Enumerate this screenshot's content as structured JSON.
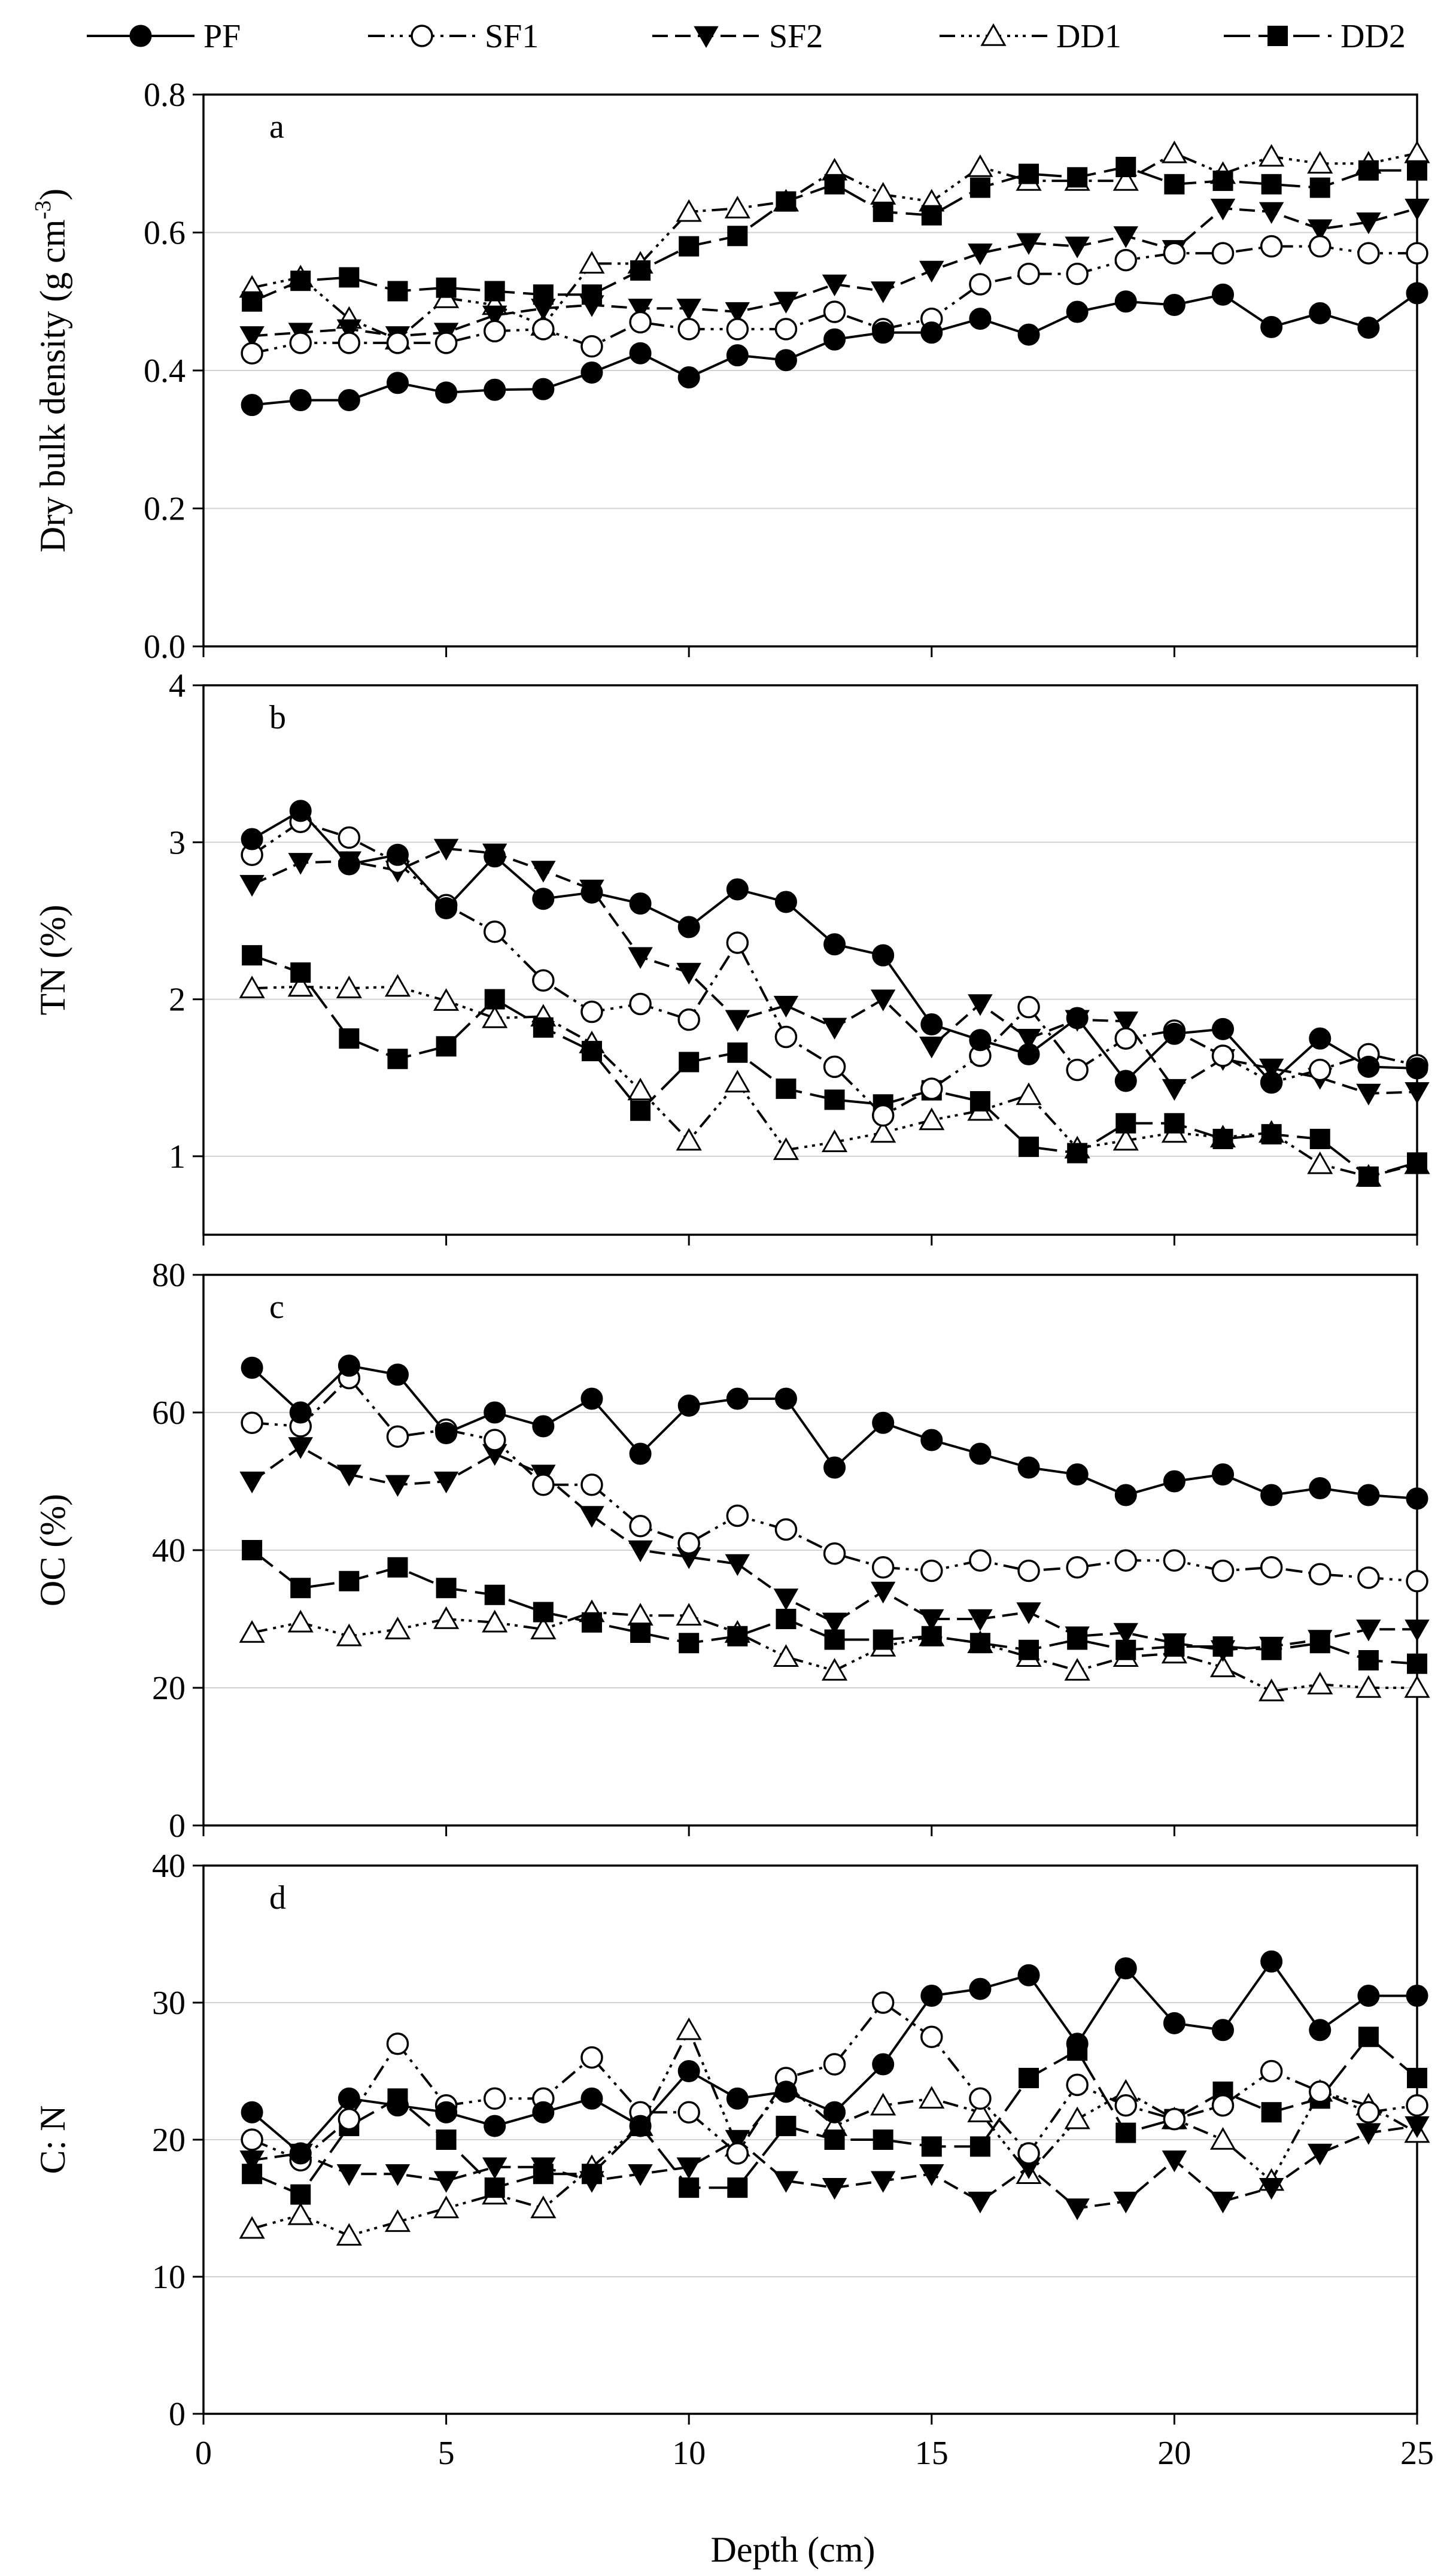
{
  "chart_data": {
    "type": "line",
    "xlabel": "Depth (cm)",
    "x": [
      1,
      2,
      3,
      4,
      5,
      6,
      7,
      8,
      9,
      10,
      11,
      12,
      13,
      14,
      15,
      16,
      17,
      18,
      19,
      20,
      21,
      22,
      23,
      24,
      25
    ],
    "xlim": [
      0,
      25
    ],
    "xticks": [
      0,
      5,
      10,
      15,
      20,
      25
    ],
    "legend": {
      "position": "top",
      "entries": [
        {
          "name": "PF",
          "marker": "filled-circle",
          "dash": "solid"
        },
        {
          "name": "SF1",
          "marker": "open-circle",
          "dash": "dash-dot-dot"
        },
        {
          "name": "SF2",
          "marker": "filled-down-triangle",
          "dash": "dashed"
        },
        {
          "name": "DD1",
          "marker": "open-up-triangle",
          "dash": "dash-dot-dot-dot"
        },
        {
          "name": "DD2",
          "marker": "filled-square",
          "dash": "long-dash"
        }
      ]
    },
    "panels": [
      {
        "letter": "a",
        "ylabel": "Dry bulk density (g cm",
        "ylabel_sup": "-3",
        "ylabel_close": ")",
        "ylim": [
          0,
          0.8
        ],
        "yticks": [
          "0.0",
          "0.2",
          "0.4",
          "0.6",
          "0.8"
        ],
        "series": [
          {
            "name": "PF",
            "values": [
              0.35,
              0.357,
              0.357,
              0.382,
              0.368,
              0.372,
              0.373,
              0.397,
              0.425,
              0.39,
              0.422,
              0.415,
              0.445,
              0.455,
              0.455,
              0.475,
              0.452,
              0.485,
              0.5,
              0.495,
              0.51,
              0.463,
              0.483,
              0.462,
              0.512
            ]
          },
          {
            "name": "SF1",
            "values": [
              0.425,
              0.44,
              0.44,
              0.44,
              0.44,
              0.457,
              0.46,
              0.435,
              0.47,
              0.46,
              0.46,
              0.46,
              0.485,
              0.46,
              0.475,
              0.525,
              0.54,
              0.54,
              0.56,
              0.57,
              0.57,
              0.58,
              0.58,
              0.57,
              0.57
            ]
          },
          {
            "name": "SF2",
            "values": [
              0.45,
              0.455,
              0.46,
              0.45,
              0.455,
              0.48,
              0.49,
              0.495,
              0.49,
              0.49,
              0.485,
              0.5,
              0.525,
              0.515,
              0.545,
              0.57,
              0.585,
              0.58,
              0.595,
              0.575,
              0.635,
              0.63,
              0.605,
              0.615,
              0.635
            ]
          },
          {
            "name": "DD1",
            "values": [
              0.52,
              0.535,
              0.475,
              0.445,
              0.505,
              0.495,
              0.465,
              0.555,
              0.555,
              0.63,
              0.635,
              0.645,
              0.69,
              0.655,
              0.645,
              0.695,
              0.675,
              0.675,
              0.675,
              0.715,
              0.685,
              0.71,
              0.7,
              0.7,
              0.715
            ]
          },
          {
            "name": "DD2",
            "values": [
              0.5,
              0.53,
              0.535,
              0.515,
              0.52,
              0.515,
              0.51,
              0.51,
              0.545,
              0.58,
              0.595,
              0.645,
              0.67,
              0.63,
              0.625,
              0.665,
              0.685,
              0.68,
              0.695,
              0.67,
              0.675,
              0.67,
              0.665,
              0.69,
              0.69
            ]
          }
        ]
      },
      {
        "letter": "b",
        "ylabel": "TN (%)",
        "ylim": [
          0.5,
          4
        ],
        "ylim_note": "axis bottom below 1, unlabeled",
        "yticks": [
          "1",
          "2",
          "3",
          "4"
        ],
        "series": [
          {
            "name": "PF",
            "values": [
              3.02,
              3.2,
              2.86,
              2.92,
              2.58,
              2.91,
              2.64,
              2.68,
              2.61,
              2.46,
              2.7,
              2.62,
              2.35,
              2.28,
              1.84,
              1.74,
              1.65,
              1.88,
              1.48,
              1.78,
              1.81,
              1.47,
              1.75,
              1.57,
              1.56
            ]
          },
          {
            "name": "SF1",
            "values": [
              2.92,
              3.13,
              3.03,
              2.87,
              2.6,
              2.43,
              2.12,
              1.92,
              1.97,
              1.87,
              2.36,
              1.76,
              1.57,
              1.26,
              1.43,
              1.64,
              1.95,
              1.55,
              1.75,
              1.8,
              1.64,
              1.47,
              1.55,
              1.65,
              1.58
            ]
          },
          {
            "name": "SF2",
            "values": [
              2.73,
              2.87,
              2.88,
              2.82,
              2.96,
              2.93,
              2.82,
              2.7,
              2.27,
              2.17,
              1.87,
              1.96,
              1.82,
              2.0,
              1.7,
              1.97,
              1.75,
              1.87,
              1.86,
              1.43,
              1.62,
              1.56,
              1.5,
              1.4,
              1.41
            ]
          },
          {
            "name": "DD1",
            "values": [
              2.07,
              2.08,
              2.07,
              2.08,
              1.99,
              1.88,
              1.89,
              1.72,
              1.42,
              1.1,
              1.47,
              1.04,
              1.09,
              1.15,
              1.23,
              1.29,
              1.39,
              1.05,
              1.1,
              1.15,
              1.12,
              1.15,
              0.95,
              0.87,
              0.95
            ]
          },
          {
            "name": "DD2",
            "values": [
              2.28,
              2.17,
              1.75,
              1.62,
              1.7,
              2.0,
              1.82,
              1.67,
              1.29,
              1.6,
              1.66,
              1.43,
              1.36,
              1.33,
              1.42,
              1.35,
              1.06,
              1.02,
              1.21,
              1.21,
              1.11,
              1.14,
              1.11,
              0.87,
              0.96
            ]
          }
        ]
      },
      {
        "letter": "c",
        "ylabel": "OC (%)",
        "ylim": [
          0,
          80
        ],
        "yticks": [
          "0",
          "20",
          "40",
          "60",
          "80"
        ],
        "series": [
          {
            "name": "PF",
            "values": [
              66.5,
              60.0,
              66.8,
              65.5,
              57.0,
              60.0,
              58.0,
              62.0,
              54.0,
              61.0,
              62.0,
              62.0,
              52.0,
              58.5,
              56.0,
              54.0,
              52.0,
              51.0,
              48.0,
              50.0,
              51.0,
              48.0,
              49.0,
              48.0,
              47.5
            ]
          },
          {
            "name": "SF1",
            "values": [
              58.5,
              58.0,
              65.0,
              56.5,
              57.5,
              56.0,
              49.5,
              49.5,
              43.5,
              41.0,
              45.0,
              43.0,
              39.5,
              37.5,
              37.0,
              38.5,
              37.0,
              37.5,
              38.5,
              38.5,
              37.0,
              37.5,
              36.5,
              36.0,
              35.5
            ]
          },
          {
            "name": "SF2",
            "values": [
              50.0,
              55.0,
              51.0,
              49.5,
              50.0,
              54.0,
              51.0,
              45.0,
              40.0,
              39.0,
              38.0,
              33.0,
              29.5,
              34.0,
              30.0,
              30.0,
              31.0,
              27.5,
              28.0,
              26.5,
              25.5,
              26.0,
              27.0,
              28.5,
              28.5
            ]
          },
          {
            "name": "DD1",
            "values": [
              28.0,
              29.5,
              27.5,
              28.5,
              30.0,
              29.5,
              28.5,
              31.0,
              30.5,
              30.5,
              28.0,
              24.5,
              22.5,
              26.0,
              27.5,
              26.5,
              24.5,
              22.5,
              24.5,
              25.0,
              23.0,
              19.5,
              20.5,
              20.0,
              20.0
            ]
          },
          {
            "name": "DD2",
            "values": [
              40.0,
              34.5,
              35.5,
              37.5,
              34.5,
              33.5,
              31.0,
              29.5,
              28.0,
              26.5,
              27.5,
              30.0,
              27.0,
              27.0,
              27.5,
              26.5,
              25.5,
              27.0,
              25.5,
              26.0,
              26.0,
              25.5,
              26.5,
              24.0,
              23.5
            ]
          }
        ]
      },
      {
        "letter": "d",
        "ylabel": "C: N",
        "ylim": [
          0,
          40
        ],
        "yticks": [
          "0",
          "10",
          "20",
          "30",
          "40"
        ],
        "series": [
          {
            "name": "PF",
            "values": [
              22.0,
              19.0,
              23.0,
              22.5,
              22.0,
              21.0,
              22.0,
              23.0,
              21.0,
              25.0,
              23.0,
              23.5,
              22.0,
              25.5,
              30.5,
              31.0,
              32.0,
              27.0,
              32.5,
              28.5,
              28.0,
              33.0,
              28.0,
              30.5,
              30.5
            ]
          },
          {
            "name": "SF1",
            "values": [
              20.0,
              18.5,
              21.5,
              27.0,
              22.5,
              23.0,
              23.0,
              26.0,
              22.0,
              22.0,
              19.0,
              24.5,
              25.5,
              30.0,
              27.5,
              23.0,
              19.0,
              24.0,
              22.5,
              21.5,
              22.5,
              25.0,
              23.5,
              22.0,
              22.5
            ]
          },
          {
            "name": "SF2",
            "values": [
              18.5,
              19.0,
              17.5,
              17.5,
              17.0,
              18.0,
              18.0,
              17.0,
              17.5,
              18.0,
              20.0,
              17.0,
              16.5,
              17.0,
              17.5,
              15.5,
              18.0,
              15.0,
              15.5,
              18.5,
              15.5,
              16.5,
              19.0,
              20.5,
              21.0
            ]
          },
          {
            "name": "DD1",
            "values": [
              13.5,
              14.5,
              13.0,
              14.0,
              15.0,
              16.0,
              15.0,
              18.0,
              21.0,
              28.0,
              19.5,
              24.0,
              21.0,
              22.5,
              23.0,
              22.0,
              17.5,
              21.5,
              23.5,
              21.5,
              20.0,
              17.0,
              23.5,
              22.5,
              20.5
            ]
          },
          {
            "name": "DD2",
            "values": [
              17.5,
              16.0,
              21.0,
              23.0,
              20.0,
              16.5,
              17.5,
              17.5,
              21.0,
              16.5,
              16.5,
              21.0,
              20.0,
              20.0,
              19.5,
              19.5,
              24.5,
              26.5,
              20.5,
              21.5,
              23.5,
              22.0,
              23.0,
              27.5,
              24.5
            ]
          }
        ]
      }
    ]
  }
}
